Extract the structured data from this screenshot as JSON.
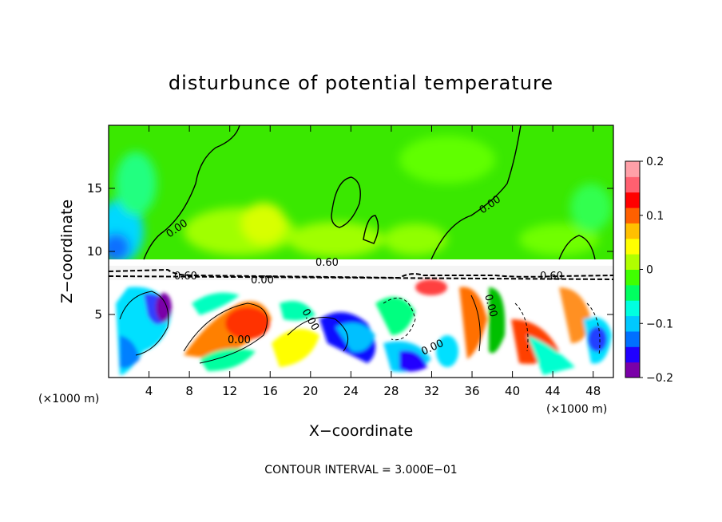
{
  "chart_data": {
    "type": "heatmap",
    "title": "disturbunce of potential temperature",
    "xlabel": "X−coordinate",
    "ylabel": "Z−coordinate",
    "x_unit": "(×1000 m)",
    "y_unit": "(×1000 m)",
    "xlim": [
      0,
      50
    ],
    "ylim": [
      0,
      20
    ],
    "x_ticks": [
      "4",
      "8",
      "12",
      "16",
      "20",
      "24",
      "28",
      "32",
      "36",
      "40",
      "44",
      "48"
    ],
    "y_ticks": [
      "5",
      "10",
      "15"
    ],
    "colorbar": {
      "range": [
        -0.2,
        0.2
      ],
      "tick_labels": [
        "0.2",
        "0.1",
        "0",
        "−0.1",
        "−0.2"
      ],
      "colors": [
        "#7a00a8",
        "#2000ff",
        "#0070ff",
        "#00c8ff",
        "#00ffe0",
        "#00ff60",
        "#40ff00",
        "#b0ff00",
        "#ffff00",
        "#ffc000",
        "#ff6000",
        "#ff0000",
        "#ff6070",
        "#ffa0a8"
      ]
    },
    "contour_labels": [
      "0.00",
      "0.00",
      "0.00",
      "0.60",
      "0.60",
      "0.00",
      "0.00",
      "0.60",
      "0.00",
      "0.00"
    ],
    "grid": false
  },
  "footer": {
    "contour_interval": "CONTOUR INTERVAL = 3.000E−01"
  }
}
